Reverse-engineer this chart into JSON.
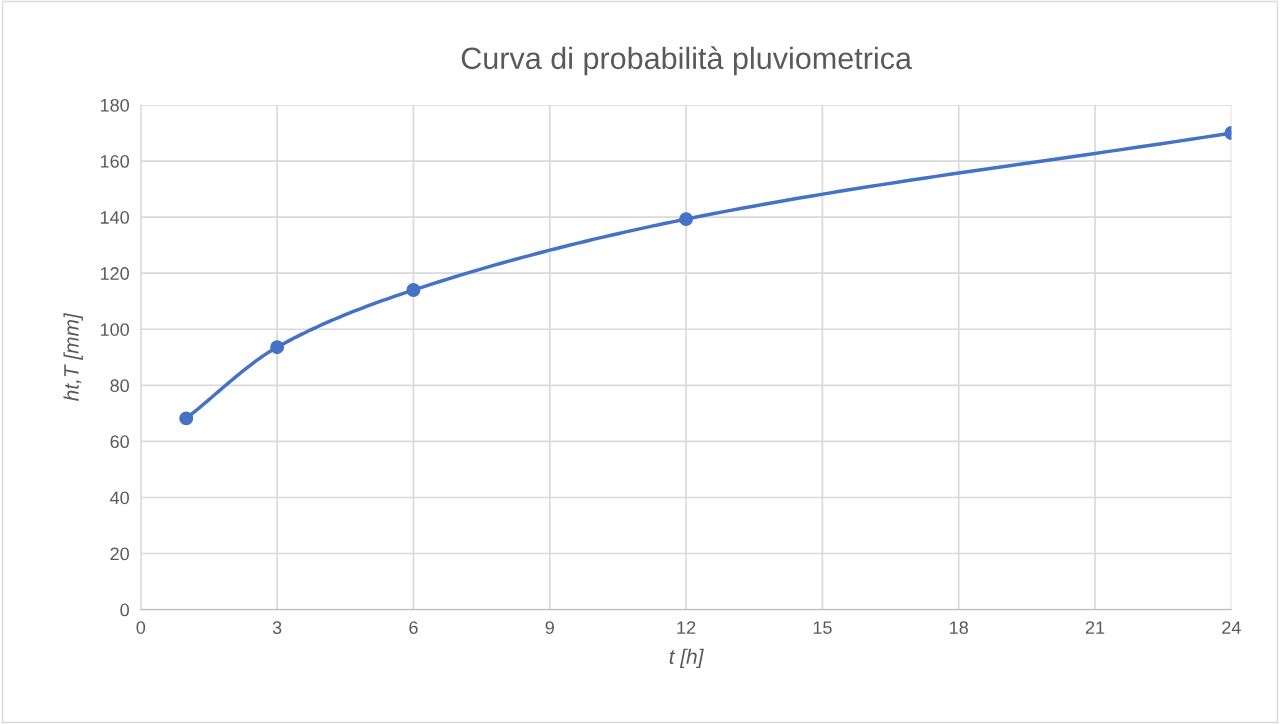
{
  "chart_data": {
    "type": "line",
    "title": "Curva di probabilità pluviometrica",
    "xlabel": "t [h]",
    "ylabel": "ht,T [mm]",
    "x": [
      1,
      3,
      6,
      12,
      24
    ],
    "series": [
      {
        "color": "#4472c4",
        "values": [
          68.2,
          93.6,
          114,
          139.3,
          170
        ]
      }
    ],
    "xlim": [
      0,
      24
    ],
    "xticks": [
      0,
      3,
      6,
      9,
      12,
      15,
      18,
      21,
      24
    ],
    "ylim": [
      0,
      180
    ],
    "yticks": [
      0,
      20,
      40,
      60,
      80,
      100,
      120,
      140,
      160,
      180
    ],
    "grid": true,
    "marker": "circle",
    "line_style": "solid"
  }
}
